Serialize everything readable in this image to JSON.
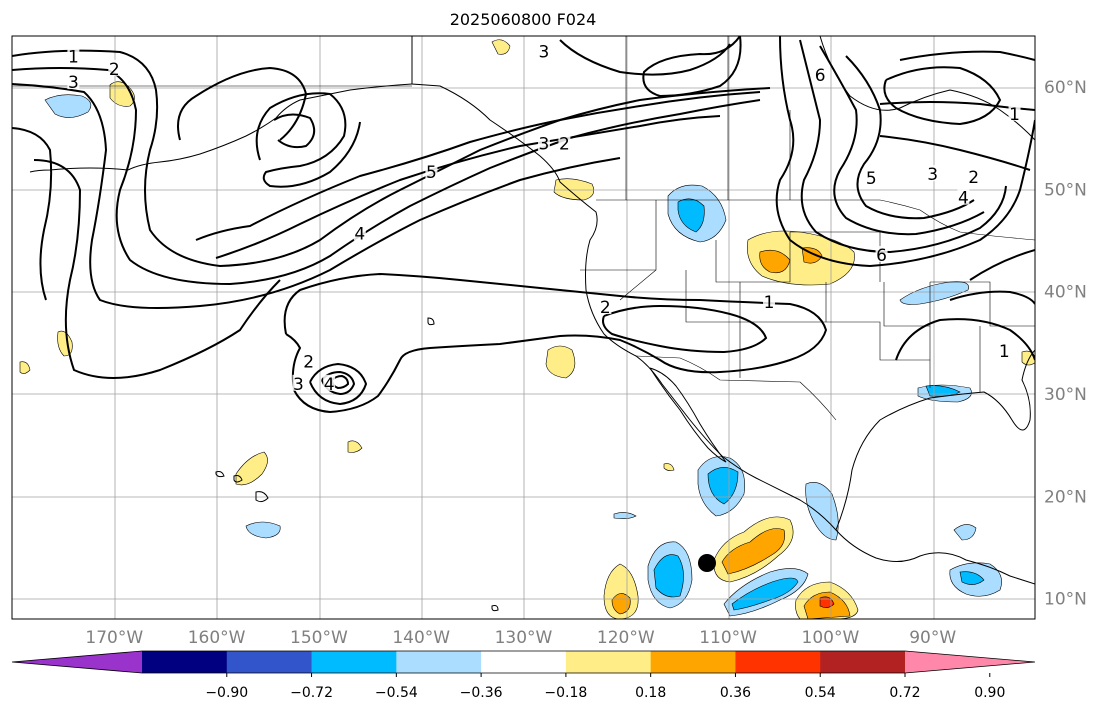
{
  "title": "2025060800 F024",
  "map": {
    "lon_labels": [
      "170°W",
      "160°W",
      "150°W",
      "140°W",
      "130°W",
      "120°W",
      "110°W",
      "100°W",
      "90°W"
    ],
    "lon_values": [
      -170,
      -160,
      -150,
      -140,
      -130,
      -120,
      -110,
      -100,
      -90
    ],
    "lat_labels": [
      "10°N",
      "20°N",
      "30°N",
      "40°N",
      "50°N",
      "60°N"
    ],
    "lat_values": [
      10,
      20,
      30,
      40,
      50,
      60
    ],
    "lon_range": [
      -180,
      -80
    ],
    "lat_range": [
      8,
      65
    ],
    "gridlines": true,
    "gridline_color": "#a0a0a0",
    "land_outline_color": "#000000",
    "marker": {
      "name": "point",
      "lon": -110,
      "lat": 13.2,
      "color": "#000000"
    }
  },
  "contours": {
    "color": "#000000",
    "labels": [
      {
        "text": "1",
        "lon": -174,
        "lat": 62.8
      },
      {
        "text": "3",
        "lon": -174,
        "lat": 60.3
      },
      {
        "text": "2",
        "lon": -170,
        "lat": 61.6
      },
      {
        "text": "3",
        "lon": -128,
        "lat": 63.3
      },
      {
        "text": "3",
        "lon": -128,
        "lat": 54.3
      },
      {
        "text": "2",
        "lon": -126,
        "lat": 54.3
      },
      {
        "text": "5",
        "lon": -139,
        "lat": 51.5
      },
      {
        "text": "4",
        "lon": -146,
        "lat": 45.5
      },
      {
        "text": "6",
        "lon": -101,
        "lat": 61.0
      },
      {
        "text": "1",
        "lon": -82,
        "lat": 57.2
      },
      {
        "text": "3",
        "lon": -90,
        "lat": 51.3
      },
      {
        "text": "2",
        "lon": -86,
        "lat": 51.0
      },
      {
        "text": "4",
        "lon": -87,
        "lat": 49.0
      },
      {
        "text": "5",
        "lon": -96,
        "lat": 50.9
      },
      {
        "text": "6",
        "lon": -95,
        "lat": 43.4
      },
      {
        "text": "2",
        "lon": -122,
        "lat": 38.3
      },
      {
        "text": "1",
        "lon": -106,
        "lat": 38.8
      },
      {
        "text": "2",
        "lon": -151,
        "lat": 33.0
      },
      {
        "text": "3",
        "lon": -152,
        "lat": 30.8
      },
      {
        "text": "4",
        "lon": -149,
        "lat": 30.8
      },
      {
        "text": "1",
        "lon": -83,
        "lat": 34.0
      }
    ]
  },
  "colorbar": {
    "ticks": [
      "−0.90",
      "−0.72",
      "−0.54",
      "−0.36",
      "−0.18",
      "0.18",
      "0.36",
      "0.54",
      "0.72",
      "0.90"
    ],
    "colors": [
      "#9933cc",
      "#000080",
      "#3355cc",
      "#00bbff",
      "#aaddff",
      "#ffffff",
      "#ffee88",
      "#ffa500",
      "#ff3300",
      "#b22222",
      "#ff88aa"
    ],
    "extend": "both"
  },
  "chart_data": {
    "type": "heatmap",
    "title": "2025060800 F024",
    "xlabel": "",
    "ylabel": "",
    "xlim": [
      -180,
      -80
    ],
    "ylim": [
      8,
      65
    ],
    "color_levels": [
      -0.9,
      -0.72,
      -0.54,
      -0.36,
      -0.18,
      0.18,
      0.36,
      0.54,
      0.72,
      0.9
    ],
    "contour_levels": [
      1,
      2,
      3,
      4,
      5,
      6
    ],
    "grid": true,
    "colorbar_placement": "bottom"
  }
}
